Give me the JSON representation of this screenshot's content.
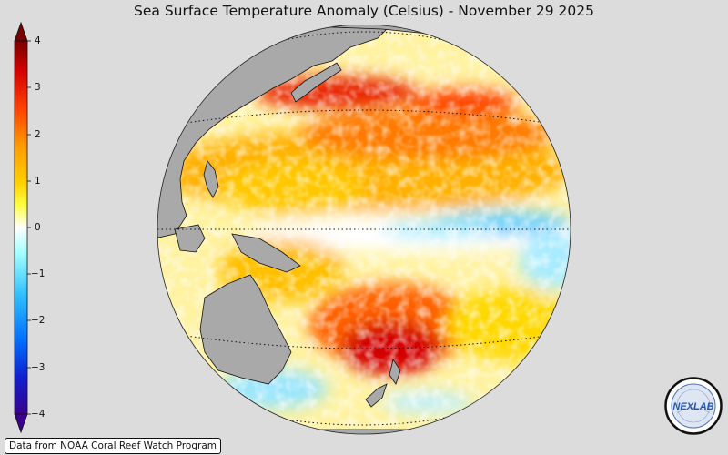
{
  "title": "Sea Surface Temperature Anomaly (Celsius) - November 29 2025",
  "colorbar": {
    "ticks": [
      "4",
      "3",
      "2",
      "1",
      "0",
      "−1",
      "−2",
      "−3",
      "−4"
    ],
    "stops": [
      "#7a0000",
      "#d40000",
      "#ff4000",
      "#ff9a00",
      "#ffd000",
      "#ffff40",
      "#ffffff",
      "#a0ffff",
      "#30c0ff",
      "#0070ff",
      "#1020d0",
      "#3a0090"
    ]
  },
  "map": {
    "land_color": "#a9a9a9",
    "ocean_warm": "#ff8c00",
    "ocean_hot": "#d40000",
    "ocean_cool": "#6ad0ff"
  },
  "credit": "Data from NOAA Coral Reef Watch Program",
  "logo": {
    "text": "NEXLAB"
  }
}
